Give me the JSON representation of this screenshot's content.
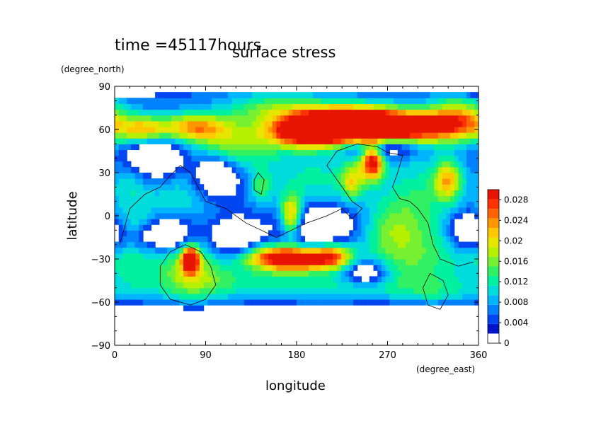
{
  "chart_data": {
    "type": "heatmap",
    "title": "surface stress",
    "time_label": "time =45117hours",
    "xlabel": "longitude",
    "xunits": "(degree_east)",
    "ylabel": "latitude",
    "yunits": "(degree_north)",
    "xlim": [
      0,
      360
    ],
    "ylim": [
      -90,
      90
    ],
    "xticks": [
      0,
      90,
      180,
      270,
      360
    ],
    "yticks": [
      -90,
      -60,
      -30,
      0,
      30,
      60,
      90
    ],
    "colorbar": {
      "min": 0,
      "max": 0.03,
      "ticks": [
        "0",
        "0.004",
        "0.008",
        "0.012",
        "0.016",
        "0.02",
        "0.024",
        "0.028"
      ],
      "tick_values": [
        0,
        0.004,
        0.008,
        0.012,
        0.016,
        0.02,
        0.024,
        0.028
      ],
      "colors": [
        "#ffffff",
        "#0014c8",
        "#0046f0",
        "#0082ff",
        "#00b4ff",
        "#00dcdc",
        "#00f0a0",
        "#32f064",
        "#78f032",
        "#b4f000",
        "#e6e600",
        "#ffc800",
        "#ff9600",
        "#ff6400",
        "#ff3200",
        "#e61400"
      ]
    },
    "field_peaks": [
      {
        "lon": 275,
        "lat": 62,
        "value": 0.03,
        "sx": 55,
        "sy": 8
      },
      {
        "lon": 230,
        "lat": 65,
        "value": 0.027,
        "sx": 35,
        "sy": 8
      },
      {
        "lon": 190,
        "lat": 58,
        "value": 0.024,
        "sx": 25,
        "sy": 7
      },
      {
        "lon": 80,
        "lat": 62,
        "value": 0.017,
        "sx": 22,
        "sy": 7
      },
      {
        "lon": 30,
        "lat": 60,
        "value": 0.014,
        "sx": 18,
        "sy": 7
      },
      {
        "lon": 120,
        "lat": 50,
        "value": 0.012,
        "sx": 30,
        "sy": 12
      },
      {
        "lon": 340,
        "lat": 70,
        "value": 0.013,
        "sx": 20,
        "sy": 10
      },
      {
        "lon": 160,
        "lat": 75,
        "value": 0.01,
        "sx": 35,
        "sy": 8
      },
      {
        "lon": 255,
        "lat": 38,
        "value": 0.026,
        "sx": 8,
        "sy": 9
      },
      {
        "lon": 235,
        "lat": 25,
        "value": 0.012,
        "sx": 8,
        "sy": 9
      },
      {
        "lon": 330,
        "lat": 25,
        "value": 0.016,
        "sx": 10,
        "sy": 10
      },
      {
        "lon": 175,
        "lat": 0,
        "value": 0.02,
        "sx": 8,
        "sy": 10
      },
      {
        "lon": 145,
        "lat": 20,
        "value": 0.008,
        "sx": 8,
        "sy": 8
      },
      {
        "lon": 200,
        "lat": 25,
        "value": 0.007,
        "sx": 35,
        "sy": 18
      },
      {
        "lon": 300,
        "lat": 10,
        "value": 0.008,
        "sx": 25,
        "sy": 25
      },
      {
        "lon": 65,
        "lat": 15,
        "value": 0.006,
        "sx": 25,
        "sy": 15
      },
      {
        "lon": 15,
        "lat": 20,
        "value": 0.006,
        "sx": 15,
        "sy": 15
      },
      {
        "lon": 25,
        "lat": -5,
        "value": 0.005,
        "sx": 20,
        "sy": 8
      },
      {
        "lon": 270,
        "lat": -10,
        "value": 0.007,
        "sx": 20,
        "sy": 15
      },
      {
        "lon": 180,
        "lat": -30,
        "value": 0.024,
        "sx": 20,
        "sy": 6
      },
      {
        "lon": 215,
        "lat": -28,
        "value": 0.02,
        "sx": 15,
        "sy": 6
      },
      {
        "lon": 150,
        "lat": -28,
        "value": 0.015,
        "sx": 20,
        "sy": 6
      },
      {
        "lon": 75,
        "lat": -30,
        "value": 0.028,
        "sx": 6,
        "sy": 6
      },
      {
        "lon": 75,
        "lat": -40,
        "value": 0.011,
        "sx": 22,
        "sy": 15
      },
      {
        "lon": 20,
        "lat": -30,
        "value": 0.006,
        "sx": 25,
        "sy": 8
      },
      {
        "lon": 300,
        "lat": -30,
        "value": 0.007,
        "sx": 35,
        "sy": 15
      },
      {
        "lon": 120,
        "lat": -45,
        "value": 0.006,
        "sx": 40,
        "sy": 10
      },
      {
        "lon": 230,
        "lat": -50,
        "value": 0.007,
        "sx": 60,
        "sy": 10
      },
      {
        "lon": 20,
        "lat": -50,
        "value": 0.005,
        "sx": 25,
        "sy": 10
      },
      {
        "lon": 320,
        "lat": -55,
        "value": 0.005,
        "sx": 25,
        "sy": 8
      }
    ],
    "field_holes": [
      {
        "lon": 265,
        "lat": 48,
        "sx": 25,
        "sy": 5
      },
      {
        "lon": 40,
        "lat": 40,
        "sx": 20,
        "sy": 10
      },
      {
        "lon": 100,
        "lat": 28,
        "sx": 15,
        "sy": 10
      },
      {
        "lon": 200,
        "lat": -5,
        "sx": 25,
        "sy": 10
      },
      {
        "lon": 50,
        "lat": -12,
        "sx": 18,
        "sy": 8
      },
      {
        "lon": 120,
        "lat": -15,
        "sx": 15,
        "sy": 8
      },
      {
        "lon": 350,
        "lat": -10,
        "sx": 12,
        "sy": 8
      },
      {
        "lon": 10,
        "lat": 88,
        "sx": 20,
        "sy": 3
      },
      {
        "lon": 260,
        "lat": -75,
        "sx": 80,
        "sy": 10
      },
      {
        "lon": 60,
        "lat": -78,
        "sx": 80,
        "sy": 10
      },
      {
        "lon": 250,
        "lat": -40,
        "sx": 15,
        "sy": 6
      }
    ],
    "coastlines": [
      [
        [
          210,
          35
        ],
        [
          220,
          45
        ],
        [
          240,
          50
        ],
        [
          260,
          48
        ],
        [
          270,
          44
        ],
        [
          285,
          42
        ],
        [
          280,
          30
        ],
        [
          275,
          20
        ],
        [
          282,
          12
        ],
        [
          292,
          10
        ],
        [
          300,
          5
        ],
        [
          310,
          -5
        ],
        [
          315,
          -20
        ],
        [
          322,
          -30
        ],
        [
          340,
          -35
        ],
        [
          355,
          -32
        ]
      ],
      [
        [
          210,
          35
        ],
        [
          225,
          20
        ],
        [
          235,
          10
        ],
        [
          245,
          5
        ],
        [
          235,
          -2
        ],
        [
          225,
          5
        ],
        [
          210,
          0
        ],
        [
          190,
          -5
        ],
        [
          175,
          -10
        ],
        [
          160,
          -15
        ],
        [
          145,
          -10
        ],
        [
          130,
          -5
        ],
        [
          110,
          5
        ],
        [
          90,
          10
        ],
        [
          75,
          30
        ],
        [
          65,
          35
        ],
        [
          55,
          28
        ],
        [
          45,
          20
        ],
        [
          30,
          15
        ],
        [
          15,
          5
        ],
        [
          5,
          -20
        ]
      ],
      [
        [
          138,
          25
        ],
        [
          142,
          30
        ],
        [
          148,
          25
        ],
        [
          145,
          15
        ],
        [
          138,
          18
        ],
        [
          138,
          25
        ]
      ],
      [
        [
          70,
          -20
        ],
        [
          85,
          -25
        ],
        [
          95,
          -35
        ],
        [
          100,
          -48
        ],
        [
          90,
          -58
        ],
        [
          75,
          -62
        ],
        [
          55,
          -58
        ],
        [
          45,
          -48
        ],
        [
          45,
          -35
        ],
        [
          55,
          -25
        ],
        [
          70,
          -20
        ]
      ],
      [
        [
          312,
          -40
        ],
        [
          325,
          -45
        ],
        [
          330,
          -55
        ],
        [
          322,
          -65
        ],
        [
          310,
          -62
        ],
        [
          305,
          -50
        ],
        [
          312,
          -40
        ]
      ]
    ]
  }
}
